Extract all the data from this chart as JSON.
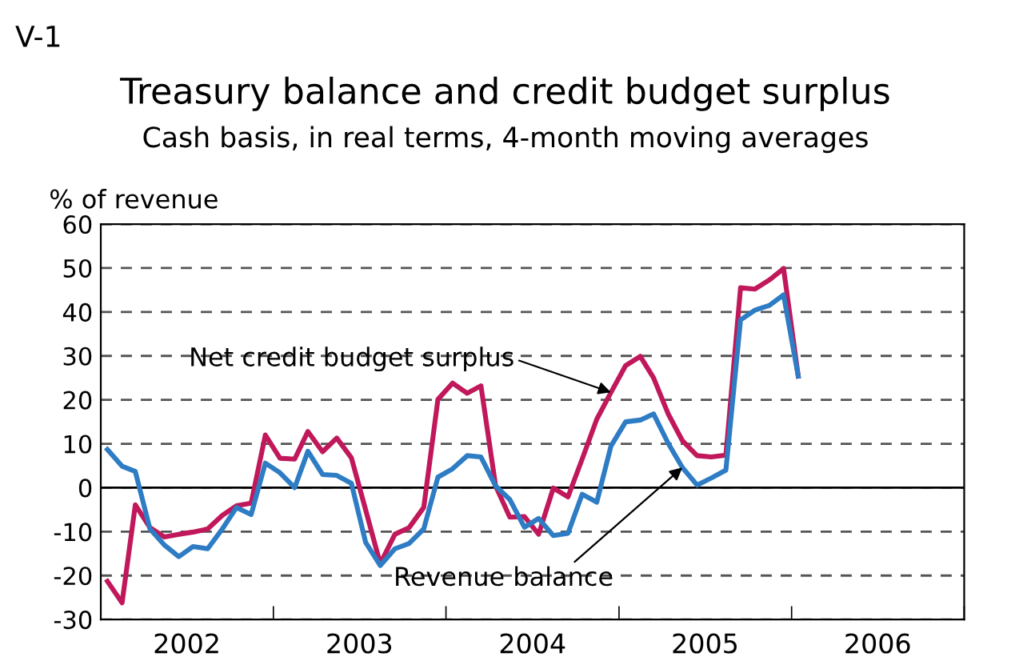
{
  "chart_data": {
    "type": "line",
    "title": "Treasury balance and credit budget surplus",
    "subtitle": "Cash basis, in real terms, 4-month moving averages",
    "ylabel": "% of revenue",
    "x": [
      "2002-01-15",
      "2002-02-15",
      "2002-03-15",
      "2002-04-15",
      "2002-05-15",
      "2002-06-15",
      "2002-07-15",
      "2002-08-15",
      "2002-09-15",
      "2002-10-15",
      "2002-11-15",
      "2002-12-15",
      "2003-01-15",
      "2003-02-15",
      "2003-03-15",
      "2003-04-15",
      "2003-05-15",
      "2003-06-15",
      "2003-07-15",
      "2003-08-15",
      "2003-09-15",
      "2003-10-15",
      "2003-11-15",
      "2003-12-15",
      "2004-01-15",
      "2004-02-15",
      "2004-03-15",
      "2004-04-15",
      "2004-05-15",
      "2004-06-15",
      "2004-07-15",
      "2004-08-15",
      "2004-09-15",
      "2004-10-15",
      "2004-11-15",
      "2004-12-15",
      "2005-01-15",
      "2005-02-15",
      "2005-03-15",
      "2005-04-15",
      "2005-05-15",
      "2005-06-15",
      "2005-07-15",
      "2005-08-15",
      "2005-09-15",
      "2005-10-15",
      "2005-11-15",
      "2005-12-15",
      "2006-01-15"
    ],
    "series": [
      {
        "name": "Net credit budget surplus",
        "color": "#c0185a",
        "values": [
          -21.3,
          -26.2,
          -3.9,
          -9.1,
          -11.2,
          -10.6,
          -10.1,
          -9.4,
          -6.3,
          -4.1,
          -3.5,
          12,
          6.7,
          6.5,
          12.8,
          8.2,
          11.3,
          6.8,
          -5,
          -17.3,
          -10.6,
          -9.1,
          -4.5,
          20.1,
          23.8,
          21.5,
          23.2,
          0.4,
          -6.7,
          -6.6,
          -10.6,
          -0.1,
          -2.1,
          6.5,
          15.6,
          21.7,
          27.8,
          29.9,
          25,
          16.8,
          10.7,
          7.3,
          7,
          7.4,
          45.5,
          45.2,
          47.3,
          49.9,
          25.4
        ]
      },
      {
        "name": "Revenue balance",
        "color": "#2d7cc4",
        "values": [
          8.7,
          4.9,
          3.7,
          -9.4,
          -13,
          -15.7,
          -13.4,
          -13.9,
          -9.4,
          -4.5,
          -6.1,
          5.6,
          3.4,
          0,
          8.3,
          3,
          2.8,
          1,
          -12.4,
          -17.7,
          -13.9,
          -12.7,
          -9.4,
          2.4,
          4.3,
          7.3,
          7,
          0.4,
          -2.7,
          -9,
          -7,
          -10.9,
          -10.4,
          -1.5,
          -3.3,
          9.5,
          15,
          15.4,
          16.8,
          10.1,
          4.6,
          0.6,
          2.2,
          4,
          38.2,
          40.4,
          41.5,
          43.9,
          25.4
        ]
      }
    ],
    "xlim": [
      "2002-01-01",
      "2007-01-01"
    ],
    "xticks": [
      {
        "value": "2002-01-01",
        "label": null
      },
      {
        "value": "2002-07-02",
        "label": "2002"
      },
      {
        "value": "2003-01-01",
        "label": null
      },
      {
        "value": "2003-07-02",
        "label": "2003"
      },
      {
        "value": "2004-01-01",
        "label": null
      },
      {
        "value": "2004-07-02",
        "label": "2004"
      },
      {
        "value": "2005-01-01",
        "label": null
      },
      {
        "value": "2005-07-02",
        "label": "2005"
      },
      {
        "value": "2006-01-01",
        "label": null
      },
      {
        "value": "2006-07-02",
        "label": "2006"
      },
      {
        "value": "2007-01-01",
        "label": null
      }
    ],
    "ylim": [
      -30,
      60
    ],
    "yticks": [
      -30,
      -20,
      -10,
      0,
      10,
      20,
      30,
      40,
      50,
      60
    ],
    "grid": "y",
    "legend": false,
    "marker": "none",
    "line_style": "solid",
    "ref_lines": [
      {
        "axis": "y",
        "value": 0,
        "label": null,
        "color": "#000000"
      }
    ],
    "annotations": [
      "V-1"
    ]
  }
}
